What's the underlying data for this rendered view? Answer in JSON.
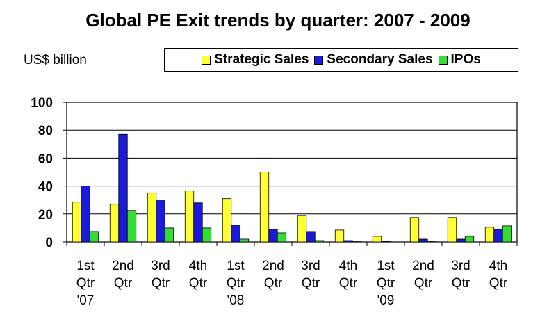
{
  "chart_data": {
    "type": "bar",
    "title": "Global PE Exit trends by quarter: 2007 - 2009",
    "unit_label": "US$ billion",
    "xlabel": "",
    "ylabel": "",
    "ylim": [
      0,
      100
    ],
    "yticks": [
      "0",
      "20",
      "40",
      "60",
      "80",
      "100"
    ],
    "grid": true,
    "legend_position": "top-right",
    "categories": [
      [
        "1st",
        "Qtr",
        "'07"
      ],
      [
        "2nd",
        "Qtr"
      ],
      [
        "3rd",
        "Qtr"
      ],
      [
        "4th",
        "Qtr"
      ],
      [
        "1st",
        "Qtr",
        "'08"
      ],
      [
        "2nd",
        "Qtr"
      ],
      [
        "3rd",
        "Qtr"
      ],
      [
        "4th",
        "Qtr"
      ],
      [
        "1st",
        "Qtr",
        "'09"
      ],
      [
        "2nd",
        "Qtr"
      ],
      [
        "3rd",
        "Qtr"
      ],
      [
        "4th",
        "Qtr"
      ]
    ],
    "series": [
      {
        "name": "Strategic Sales",
        "color": "#ffff33",
        "values": [
          28.5,
          27,
          35,
          36.5,
          31,
          50,
          19,
          8.5,
          4,
          17.5,
          17.5,
          10.5
        ]
      },
      {
        "name": "Secondary Sales",
        "color": "#1a1adb",
        "values": [
          40,
          77,
          30,
          28,
          12,
          9,
          7.5,
          1,
          0.5,
          2,
          2,
          9
        ]
      },
      {
        "name": "IPOs",
        "color": "#33dd33",
        "values": [
          7.5,
          22.5,
          10,
          10,
          2,
          6.5,
          1,
          0.5,
          0,
          0.5,
          4,
          11.5
        ]
      }
    ]
  }
}
